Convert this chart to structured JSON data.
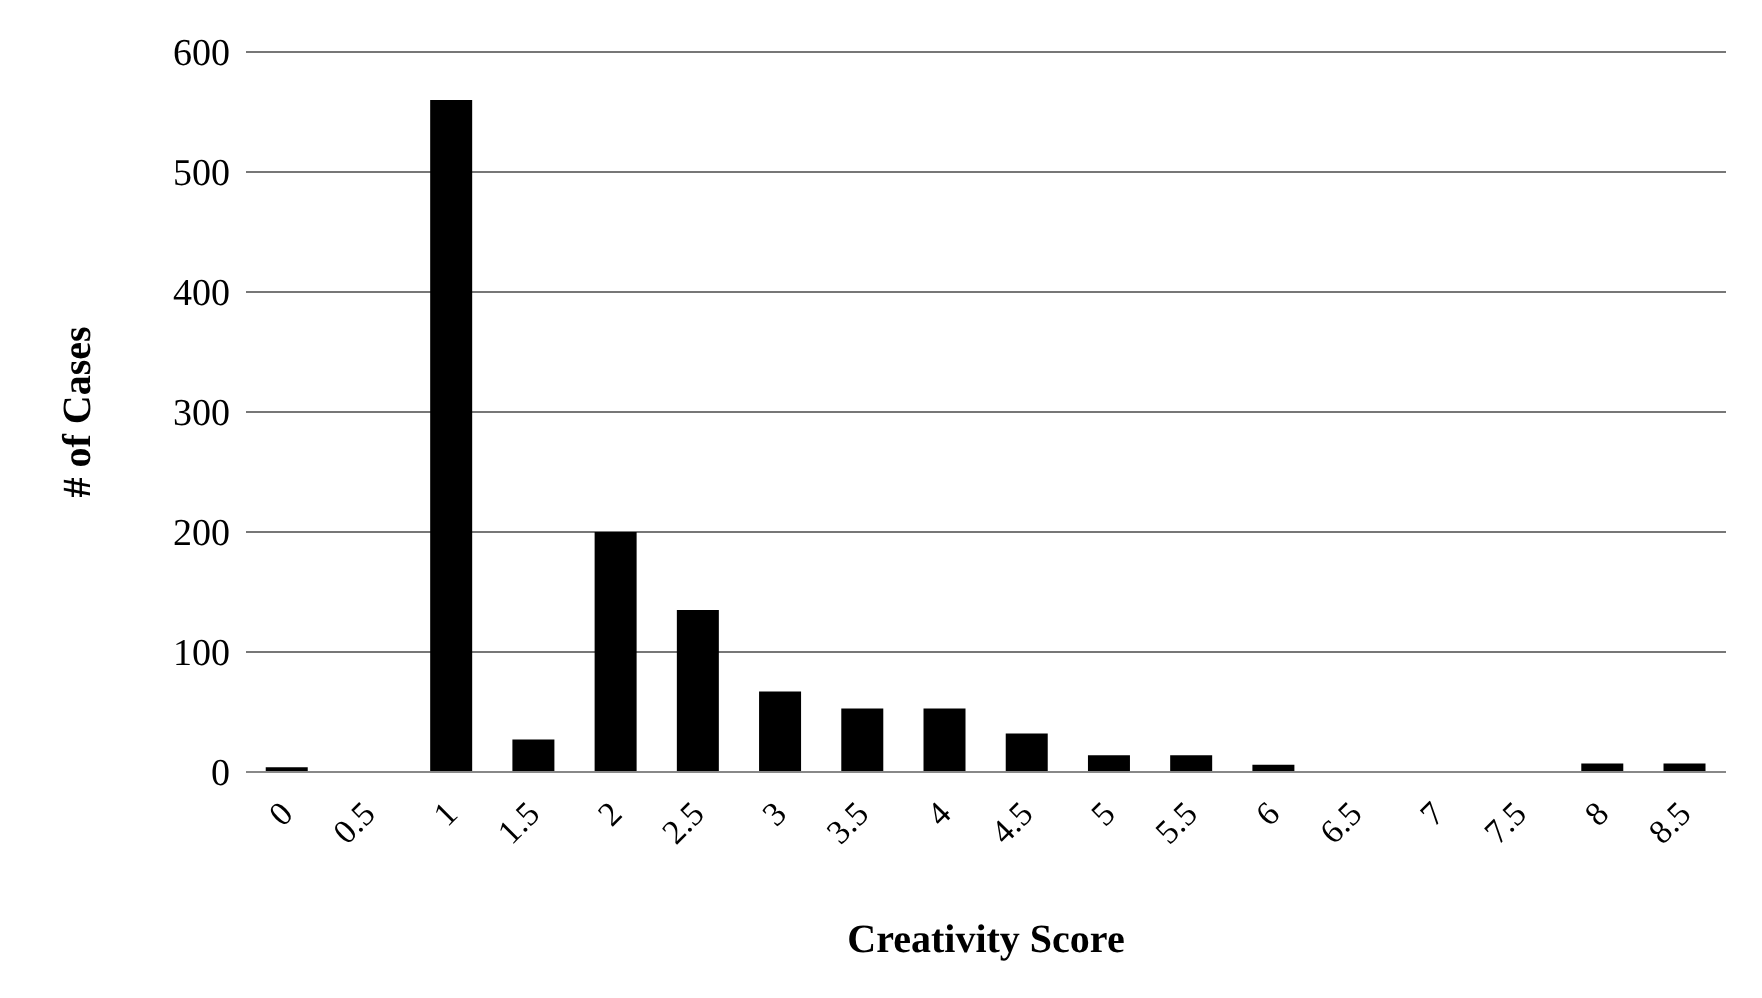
{
  "chart_data": {
    "type": "bar",
    "xlabel": "Creativity Score",
    "ylabel": "# of Cases",
    "categories": [
      "0",
      "0.5",
      "1",
      "1.5",
      "2",
      "2.5",
      "3",
      "3.5",
      "4",
      "4.5",
      "5",
      "5.5",
      "6",
      "6.5",
      "7",
      "7.5",
      "8",
      "8.5"
    ],
    "values": [
      4,
      0,
      560,
      27,
      200,
      135,
      67,
      53,
      53,
      32,
      14,
      14,
      6,
      0,
      0,
      0,
      7,
      7
    ],
    "color": "#000000",
    "ylim": [
      0,
      600
    ],
    "yticks": [
      0,
      100,
      200,
      300,
      400,
      500,
      600
    ],
    "grid": "y",
    "legend": false
  }
}
